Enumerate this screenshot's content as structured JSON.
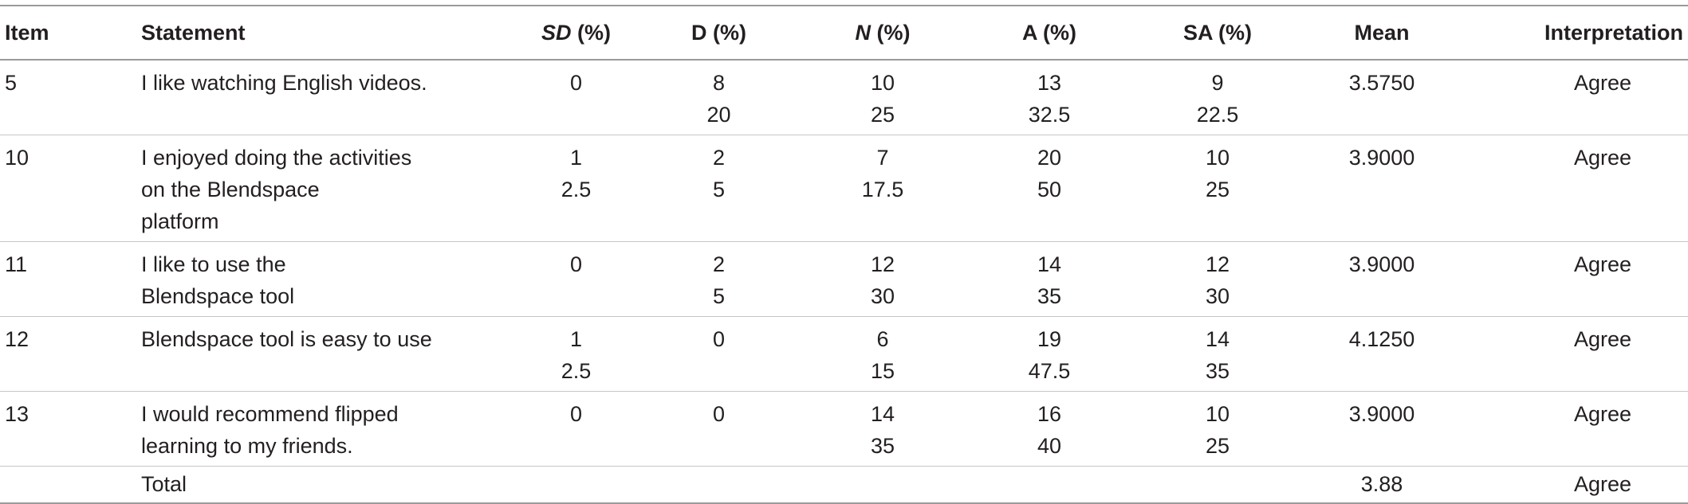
{
  "table": {
    "headers": {
      "item": "Item",
      "statement": "Statement",
      "sd_abbr": "SD",
      "sd_unit": " (%)",
      "d": "D (%)",
      "n_abbr": "N",
      "n_unit": " (%)",
      "a": "A (%)",
      "sa": "SA (%)",
      "mean": "Mean",
      "interpretation": "Interpretation"
    },
    "rows": [
      {
        "item": "5",
        "statement": [
          "I like watching English videos."
        ],
        "sd": [
          "0"
        ],
        "d": [
          "8",
          "20"
        ],
        "n": [
          "10",
          "25"
        ],
        "a": [
          "13",
          "32.5"
        ],
        "sa": [
          "9",
          "22.5"
        ],
        "mean": "3.5750",
        "interpretation": "Agree"
      },
      {
        "item": "10",
        "statement": [
          "I enjoyed doing the activities",
          "on the Blendspace",
          "platform"
        ],
        "sd": [
          "1",
          "2.5"
        ],
        "d": [
          "2",
          "5"
        ],
        "n": [
          "7",
          "17.5"
        ],
        "a": [
          "20",
          "50"
        ],
        "sa": [
          "10",
          "25"
        ],
        "mean": "3.9000",
        "interpretation": "Agree"
      },
      {
        "item": "11",
        "statement": [
          "I like to use the",
          "Blendspace tool"
        ],
        "sd": [
          "0"
        ],
        "d": [
          "2",
          "5"
        ],
        "n": [
          "12",
          "30"
        ],
        "a": [
          "14",
          "35"
        ],
        "sa": [
          "12",
          "30"
        ],
        "mean": "3.9000",
        "interpretation": "Agree"
      },
      {
        "item": "12",
        "statement": [
          "Blendspace tool is easy to use"
        ],
        "sd": [
          "1",
          "2.5"
        ],
        "d": [
          "0"
        ],
        "n": [
          "6",
          "15"
        ],
        "a": [
          "19",
          "47.5"
        ],
        "sa": [
          "14",
          "35"
        ],
        "mean": "4.1250",
        "interpretation": "Agree"
      },
      {
        "item": "13",
        "statement": [
          "I would recommend flipped",
          "learning to my friends."
        ],
        "sd": [
          "0"
        ],
        "d": [
          "0"
        ],
        "n": [
          "14",
          "35"
        ],
        "a": [
          "16",
          "40"
        ],
        "sa": [
          "10",
          "25"
        ],
        "mean": "3.9000",
        "interpretation": "Agree"
      }
    ],
    "total": {
      "label": "Total",
      "mean": "3.88",
      "interpretation": "Agree"
    }
  }
}
